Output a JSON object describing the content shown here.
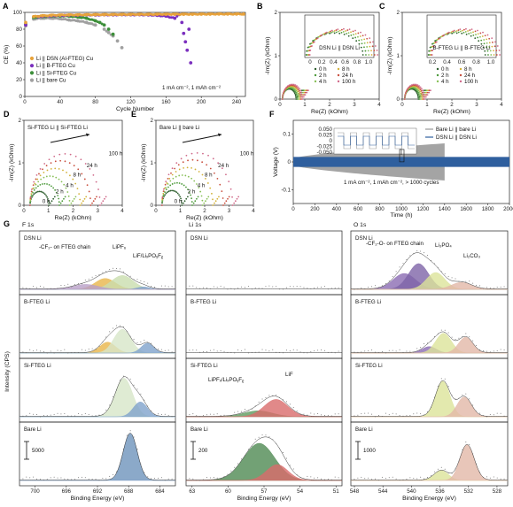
{
  "panel_letters": [
    "A",
    "B",
    "C",
    "D",
    "E",
    "F",
    "G"
  ],
  "chart_data": [
    {
      "id": "A",
      "type": "scatter",
      "xlabel": "Cycle Number",
      "ylabel": "CE (%)",
      "xlim": [
        0,
        250
      ],
      "ylim": [
        0,
        100
      ],
      "xticks": [
        0,
        40,
        80,
        120,
        160,
        200,
        240
      ],
      "yticks": [
        0,
        20,
        40,
        60,
        80,
        100
      ],
      "annotation": "1 mA cm⁻², 1 mAh cm⁻²",
      "legend_position": "bottom-left",
      "series": [
        {
          "name": "Li || DSN (Al-FTEG) Cu",
          "color": "#E8A33C",
          "x": [
            1,
            10,
            20,
            30,
            40,
            50,
            60,
            70,
            80,
            90,
            100,
            110,
            120,
            130,
            140,
            150,
            160,
            170,
            180,
            190,
            200,
            210,
            220,
            230,
            240,
            248
          ],
          "y": [
            88,
            95,
            96,
            96.5,
            96.8,
            97,
            97,
            97.2,
            97.3,
            97.3,
            97.4,
            97.5,
            97.5,
            97.6,
            97.6,
            97.7,
            97.7,
            97.8,
            97.8,
            97.8,
            97.9,
            97.9,
            98,
            98,
            98,
            98
          ]
        },
        {
          "name": "Li || B-FTEG Cu",
          "color": "#7B2FBE",
          "x": [
            1,
            15,
            30,
            45,
            60,
            70,
            80,
            90,
            100,
            110,
            120,
            130,
            140,
            150,
            160,
            170,
            175,
            178,
            180,
            182,
            184,
            186,
            188
          ],
          "y": [
            85,
            95,
            96,
            96.5,
            96.8,
            97,
            96.9,
            97.1,
            97,
            97.2,
            97.1,
            97.2,
            97,
            96.5,
            95.5,
            93,
            97.5,
            88,
            75,
            65,
            55,
            80,
            40
          ]
        },
        {
          "name": "Li || Si-FTEG Cu",
          "color": "#3D8F3A",
          "x": [
            1,
            10,
            20,
            30,
            40,
            50,
            60,
            70,
            80,
            85,
            90,
            95,
            100
          ],
          "y": [
            86,
            94,
            95,
            95.5,
            95.8,
            95.5,
            94.5,
            93,
            90,
            88,
            85,
            80,
            74
          ]
        },
        {
          "name": "Li || bare Cu",
          "color": "#A0A0A0",
          "x": [
            1,
            10,
            20,
            30,
            40,
            50,
            60,
            70,
            80,
            90,
            95,
            100,
            105,
            110
          ],
          "y": [
            84,
            92,
            93,
            93,
            92.5,
            91,
            90,
            88,
            85,
            80,
            76,
            72,
            66,
            58
          ]
        }
      ]
    },
    {
      "id": "B",
      "type": "scatter",
      "title": "DSN Li || DSN Li",
      "xlabel": "Re(Z) (kOhm)",
      "ylabel": "-Im(Z) (kOhm)",
      "xlim": [
        0,
        4
      ],
      "ylim": [
        0,
        2
      ],
      "xticks": [
        0,
        1,
        2,
        3,
        4
      ],
      "yticks": [
        0,
        1,
        2
      ],
      "inset_xticks": [
        "0",
        "0.2",
        "0.4",
        "0.6",
        "0.8",
        "1.0"
      ],
      "legend": [
        "0 h",
        "2 h",
        "4 h",
        "8 h",
        "24 h",
        "100 h"
      ]
    },
    {
      "id": "C",
      "type": "scatter",
      "title": "B-FTEG Li || B-FTEG Li",
      "xlabel": "Re(Z) (kOhm)",
      "ylabel": "-Im(Z) (kOhm)",
      "xlim": [
        0,
        4
      ],
      "ylim": [
        0,
        2
      ],
      "xticks": [
        0,
        1,
        2,
        3,
        4
      ],
      "yticks": [
        0,
        1,
        2
      ],
      "inset_xticks": [
        "0.2",
        "0.4",
        "0.6",
        "0.8",
        "1.0"
      ],
      "legend": [
        "0 h",
        "2 h",
        "4 h",
        "8 h",
        "24 h",
        "100 h"
      ]
    },
    {
      "id": "D",
      "type": "scatter",
      "title": "Si-FTEG Li || Si-FTEG Li",
      "xlabel": "Re(Z) (kOhm)",
      "ylabel": "-Im(Z) (kOhm)",
      "xlim": [
        0,
        4
      ],
      "ylim": [
        0,
        2
      ],
      "xticks": [
        0,
        1,
        2,
        3,
        4
      ],
      "yticks": [
        0,
        1,
        2
      ],
      "curve_labels": [
        "0 h",
        "2 h",
        "4 h",
        "8 h",
        "24 h",
        "100 h"
      ]
    },
    {
      "id": "E",
      "type": "scatter",
      "title": "Bare Li || bare Li",
      "xlabel": "Re(Z) (kOhm)",
      "ylabel": "-Im(Z) (kOhm)",
      "xlim": [
        0,
        4
      ],
      "ylim": [
        0,
        2
      ],
      "xticks": [
        0,
        1,
        2,
        3,
        4
      ],
      "yticks": [
        0,
        1,
        2
      ],
      "curve_labels": [
        "0 h",
        "2 h",
        "4 h",
        "8 h",
        "24 h",
        "100 h"
      ]
    },
    {
      "id": "F",
      "type": "line",
      "xlabel": "Time (h)",
      "ylabel": "Voltage (V)",
      "xlim": [
        0,
        2000
      ],
      "ylim": [
        -0.15,
        0.15
      ],
      "xticks": [
        0,
        200,
        400,
        600,
        800,
        1000,
        1200,
        1400,
        1600,
        1800,
        2000
      ],
      "yticks": [
        -0.1,
        0,
        0.1
      ],
      "inset_yticks": [
        "0.050",
        "0.025",
        "0",
        "-0.025",
        "-0.050"
      ],
      "annotation": "1 mA cm⁻², 1 mAh cm⁻², > 1000 cycles",
      "series": [
        {
          "name": "Bare Li || bare Li",
          "color": "#9A9A9A",
          "end_h": 1400
        },
        {
          "name": "DSN Li || DSN Li",
          "color": "#2F5F9E",
          "end_h": 2000
        }
      ]
    },
    {
      "id": "G",
      "type": "area",
      "ylabel": "Intensity (CPS)",
      "columns": [
        {
          "element": "F 1s",
          "xlabel": "Binding Energy (eV)",
          "xlim": [
            702,
            682
          ],
          "xticks": [
            700,
            696,
            692,
            688,
            684
          ],
          "scale_bar": "5000",
          "rows": [
            {
              "sample": "DSN Li",
              "labels": [
                {
                  "t": "-CF₂- on FTEG chain",
                  "c": "#D9A024"
                },
                {
                  "t": "LiPF₆",
                  "c": "#6FAF3F"
                },
                {
                  "t": "LiF/LiₓPOᵧFᵨ",
                  "c": "#2F5F9E"
                }
              ],
              "peaks": [
                {
                  "center": 691.0,
                  "height": 0.22,
                  "width": 1.3,
                  "color": "#E8B54A"
                },
                {
                  "center": 688.8,
                  "height": 0.28,
                  "width": 1.4,
                  "color": "#C9DDAE"
                },
                {
                  "center": 686.1,
                  "height": 0.05,
                  "width": 0.8,
                  "color": "#7FA3CC"
                },
                {
                  "center": 693.5,
                  "height": 0.1,
                  "width": 1.6,
                  "color": "#B9A0C8"
                }
              ]
            },
            {
              "sample": "B-FTEG Li",
              "labels": [],
              "peaks": [
                {
                  "center": 690.7,
                  "height": 0.22,
                  "width": 1.0,
                  "color": "#E8B54A"
                },
                {
                  "center": 688.8,
                  "height": 0.48,
                  "width": 1.1,
                  "color": "#D7E6C8"
                },
                {
                  "center": 685.6,
                  "height": 0.2,
                  "width": 0.8,
                  "color": "#7FA3CC"
                }
              ]
            },
            {
              "sample": "Si-FTEG Li",
              "labels": [],
              "peaks": [
                {
                  "center": 688.6,
                  "height": 0.78,
                  "width": 1.1,
                  "color": "#D7E6C8"
                },
                {
                  "center": 686.5,
                  "height": 0.3,
                  "width": 0.9,
                  "color": "#7FA3CC"
                }
              ]
            },
            {
              "sample": "Bare Li",
              "labels": [],
              "peaks": [
                {
                  "center": 687.8,
                  "height": 0.95,
                  "width": 0.9,
                  "color": "#6E93BB"
                }
              ]
            }
          ]
        },
        {
          "element": "Li 1s",
          "xlabel": "Binding Energy (eV)",
          "xlim": [
            63.5,
            50.5
          ],
          "xticks": [
            63,
            60,
            57,
            54,
            51
          ],
          "scale_bar": "200",
          "rows": [
            {
              "sample": "DSN Li",
              "labels": [],
              "peaks": []
            },
            {
              "sample": "B-FTEG Li",
              "labels": [],
              "peaks": []
            },
            {
              "sample": "Si-FTEG Li",
              "labels": [
                {
                  "t": "LiPFₓ/LiₓPOᵧFᵨ",
                  "c": "#2E6B34"
                },
                {
                  "t": "LiF",
                  "c": "#D04A4A"
                }
              ],
              "peaks": [
                {
                  "center": 57.5,
                  "height": 0.12,
                  "width": 1.2,
                  "color": "#5E9A5E"
                },
                {
                  "center": 56.0,
                  "height": 0.35,
                  "width": 1.0,
                  "color": "#D96B6B"
                }
              ]
            },
            {
              "sample": "Bare Li",
              "labels": [],
              "peaks": [
                {
                  "center": 57.4,
                  "height": 0.75,
                  "width": 1.3,
                  "color": "#4F8A52"
                },
                {
                  "center": 55.9,
                  "height": 0.32,
                  "width": 0.9,
                  "color": "#D96B6B"
                }
              ]
            }
          ]
        },
        {
          "element": "O 1s",
          "xlabel": "Binding Energy (eV)",
          "xlim": [
            548.5,
            526.5
          ],
          "xticks": [
            548,
            544,
            540,
            536,
            532,
            528
          ],
          "scale_bar": "1000",
          "rows": [
            {
              "sample": "DSN Li",
              "labels": [
                {
                  "t": "-CF₂-O- on FTEG chain",
                  "c": "#7B3FA0"
                },
                {
                  "t": "Li₃PO₄",
                  "c": "#B5A000"
                },
                {
                  "t": "Li₂CO₃",
                  "c": "#D07A60"
                }
              ],
              "peaks": [
                {
                  "center": 541.0,
                  "height": 0.32,
                  "width": 1.6,
                  "color": "#8B6BB3"
                },
                {
                  "center": 539.0,
                  "height": 0.52,
                  "width": 1.4,
                  "color": "#7E64A8"
                },
                {
                  "center": 536.6,
                  "height": 0.34,
                  "width": 1.3,
                  "color": "#DCE39A"
                },
                {
                  "center": 533.0,
                  "height": 0.14,
                  "width": 1.4,
                  "color": "#E2B8A8"
                }
              ]
            },
            {
              "sample": "B-FTEG Li",
              "labels": [],
              "peaks": [
                {
                  "center": 537.5,
                  "height": 0.13,
                  "width": 1.0,
                  "color": "#8B6BB3"
                },
                {
                  "center": 535.5,
                  "height": 0.4,
                  "width": 1.1,
                  "color": "#DCE39A"
                },
                {
                  "center": 532.4,
                  "height": 0.32,
                  "width": 1.0,
                  "color": "#E2B8A8"
                }
              ]
            },
            {
              "sample": "Si-FTEG Li",
              "labels": [],
              "peaks": [
                {
                  "center": 535.6,
                  "height": 0.72,
                  "width": 1.0,
                  "color": "#DCE39A"
                },
                {
                  "center": 532.6,
                  "height": 0.4,
                  "width": 1.0,
                  "color": "#E2B8A8"
                }
              ]
            },
            {
              "sample": "Bare Li",
              "labels": [],
              "peaks": [
                {
                  "center": 535.8,
                  "height": 0.2,
                  "width": 1.0,
                  "color": "#DCE39A"
                },
                {
                  "center": 532.2,
                  "height": 0.72,
                  "width": 1.0,
                  "color": "#E2B8A8"
                }
              ]
            }
          ]
        }
      ]
    }
  ]
}
